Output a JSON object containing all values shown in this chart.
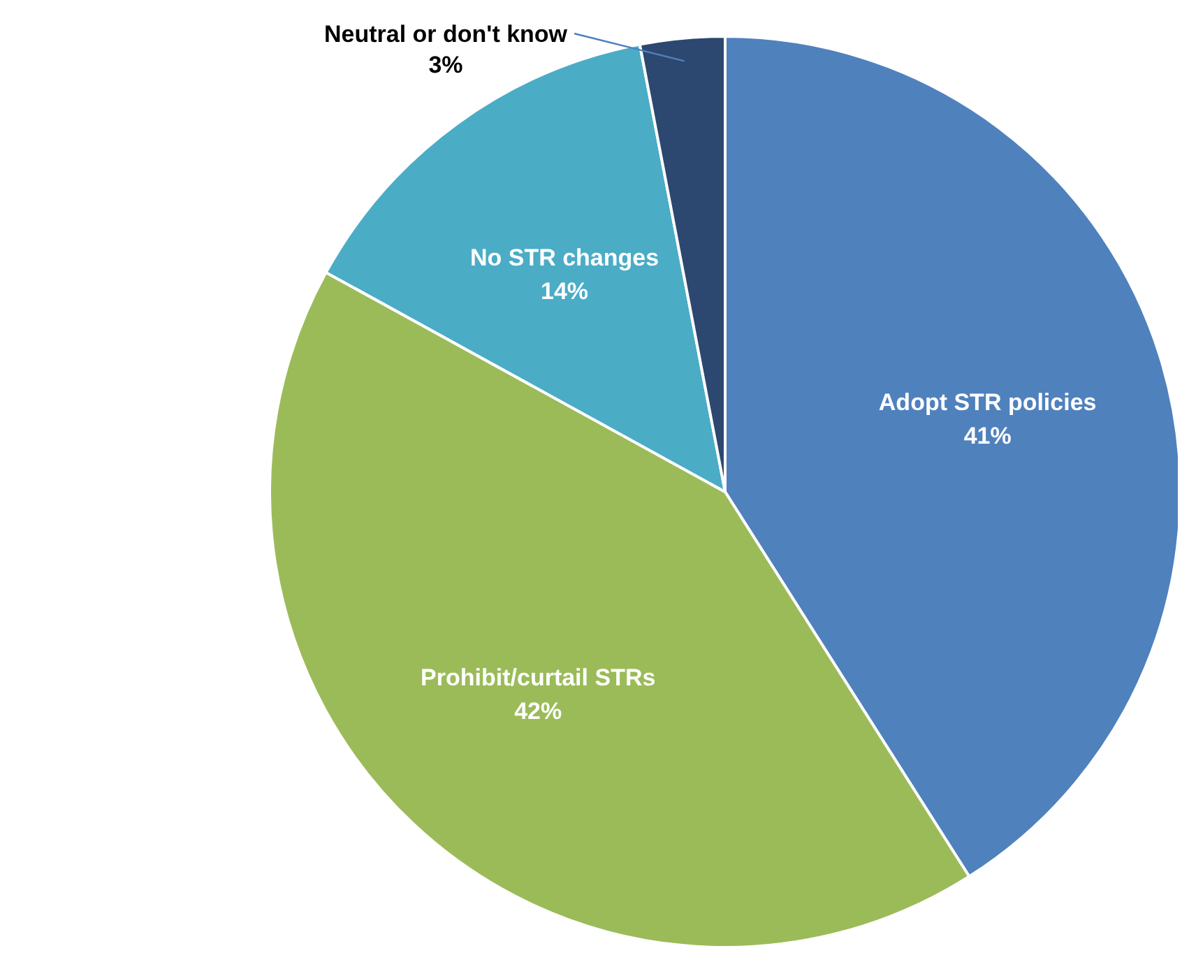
{
  "chart_data": {
    "type": "pie",
    "categories": [
      "Adopt STR policies",
      "Prohibit/curtail STRs",
      "No STR changes",
      "Neutral or don't know"
    ],
    "values": [
      41,
      42,
      14,
      3
    ],
    "colors": [
      "#4f81bd",
      "#9bbb59",
      "#4bacc6",
      "#2c4770"
    ],
    "value_labels": [
      "41%",
      "42%",
      "14%",
      "3%"
    ]
  }
}
